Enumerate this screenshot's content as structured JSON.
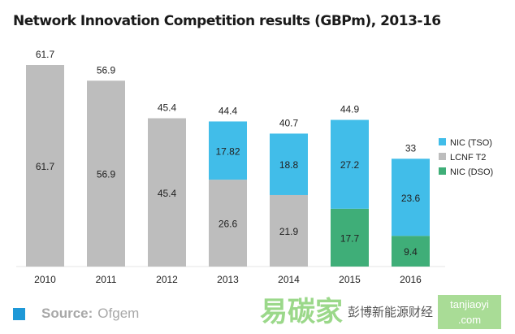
{
  "chart_data": {
    "type": "stacked-bar",
    "title": "Network Innovation Competition results (GBPm), 2013-16",
    "categories": [
      "2010",
      "2011",
      "2012",
      "2013",
      "2014",
      "2015",
      "2016"
    ],
    "series": [
      {
        "name": "NIC (DSO)",
        "color": "#3fae78",
        "values": [
          0,
          0,
          0,
          0,
          0,
          17.7,
          9.4
        ],
        "labels": [
          "",
          "",
          "",
          "",
          "",
          "17.7",
          "9.4"
        ]
      },
      {
        "name": "LCNF T2",
        "color": "#bdbdbd",
        "values": [
          61.7,
          56.9,
          45.4,
          26.6,
          21.9,
          0,
          0
        ],
        "labels": [
          "61.7",
          "56.9",
          "45.4",
          "26.6",
          "21.9",
          "",
          ""
        ]
      },
      {
        "name": "NIC (TSO)",
        "color": "#41bde9",
        "values": [
          0,
          0,
          0,
          17.82,
          18.8,
          27.2,
          23.6
        ],
        "labels": [
          "",
          "",
          "",
          "17.82",
          "18.8",
          "27.2",
          "23.6"
        ]
      }
    ],
    "totals": [
      "61.7",
      "56.9",
      "45.4",
      "44.4",
      "40.7",
      "44.9",
      "33"
    ],
    "legend_order": [
      "NIC (TSO)",
      "LCNF T2",
      "NIC (DSO)"
    ],
    "legend_placement": "right",
    "ylim": [
      0,
      65
    ],
    "grid": false,
    "xlabel": "",
    "ylabel": ""
  },
  "source": {
    "label": "Source:",
    "value": "Ofgem"
  },
  "watermark": {
    "logo": "易碳家",
    "domain": "tanjiaoyi .com",
    "text": "彭博新能源财经"
  }
}
